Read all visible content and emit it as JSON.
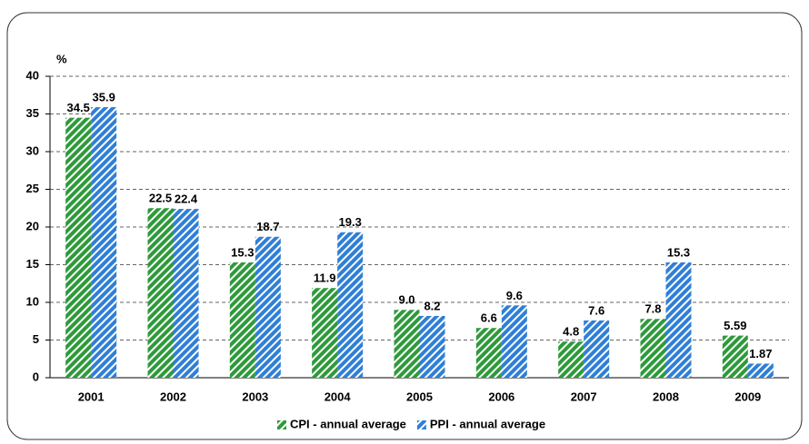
{
  "chart_data": {
    "type": "bar",
    "y_label": "%",
    "categories": [
      "2001",
      "2002",
      "2003",
      "2004",
      "2005",
      "2006",
      "2007",
      "2008",
      "2009"
    ],
    "series": [
      {
        "name": "CPI - annual average",
        "color": "#2e9a3a",
        "values": [
          34.5,
          22.5,
          15.3,
          11.9,
          9.0,
          6.6,
          4.8,
          7.8,
          5.59
        ],
        "value_labels": [
          "34.5",
          "22.5",
          "15.3",
          "11.9",
          "9.0",
          "6.6",
          "4.8",
          "7.8",
          "5.59"
        ]
      },
      {
        "name": "PPI - annual average",
        "color": "#2f7fd6",
        "values": [
          35.9,
          22.4,
          18.7,
          19.3,
          8.2,
          9.6,
          7.6,
          15.3,
          1.87
        ],
        "value_labels": [
          "35.9",
          "22.4",
          "18.7",
          "19.3",
          "8.2",
          "9.6",
          "7.6",
          "15.3",
          "1.87"
        ]
      }
    ],
    "ylim": [
      0,
      40
    ],
    "yticks": [
      0,
      5,
      10,
      15,
      20,
      25,
      30,
      35,
      40
    ],
    "grid": true,
    "legend": "bottom"
  }
}
